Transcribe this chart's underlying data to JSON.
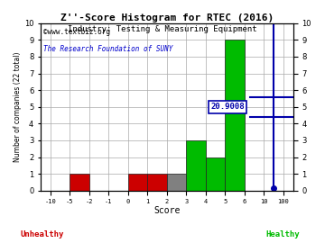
{
  "title": "Z''-Score Histogram for RTEC (2016)",
  "subtitle": "Industry: Testing & Measuring Equipment",
  "watermark1": "©www.textbiz.org",
  "watermark2": "The Research Foundation of SUNY",
  "xlabel": "Score",
  "ylabel": "Number of companies (22 total)",
  "unhealthy_label": "Unhealthy",
  "healthy_label": "Healthy",
  "tick_labels": [
    "-10",
    "-5",
    "-2",
    "-1",
    "0",
    "1",
    "2",
    "3",
    "4",
    "5",
    "6",
    "10",
    "100"
  ],
  "counts": [
    0,
    1,
    0,
    0,
    1,
    1,
    1,
    3,
    2,
    9,
    0,
    0
  ],
  "bar_colors": [
    "#cc0000",
    "#cc0000",
    "#cc0000",
    "#cc0000",
    "#cc0000",
    "#cc0000",
    "#808080",
    "#00bb00",
    "#00bb00",
    "#00bb00",
    "#00bb00",
    "#00bb00"
  ],
  "rtec_tick_index": 11.5,
  "rtec_value_label": "20.9008",
  "ylim": [
    0,
    10
  ],
  "yticks": [
    0,
    1,
    2,
    3,
    4,
    5,
    6,
    7,
    8,
    9,
    10
  ],
  "background_color": "#ffffff",
  "grid_color": "#aaaaaa",
  "title_color": "#000000",
  "subtitle_color": "#000000",
  "watermark1_color": "#000000",
  "watermark2_color": "#0000cc",
  "unhealthy_color": "#cc0000",
  "healthy_color": "#00bb00",
  "annotation_color": "#0000aa",
  "annotation_bg": "#ffffff"
}
